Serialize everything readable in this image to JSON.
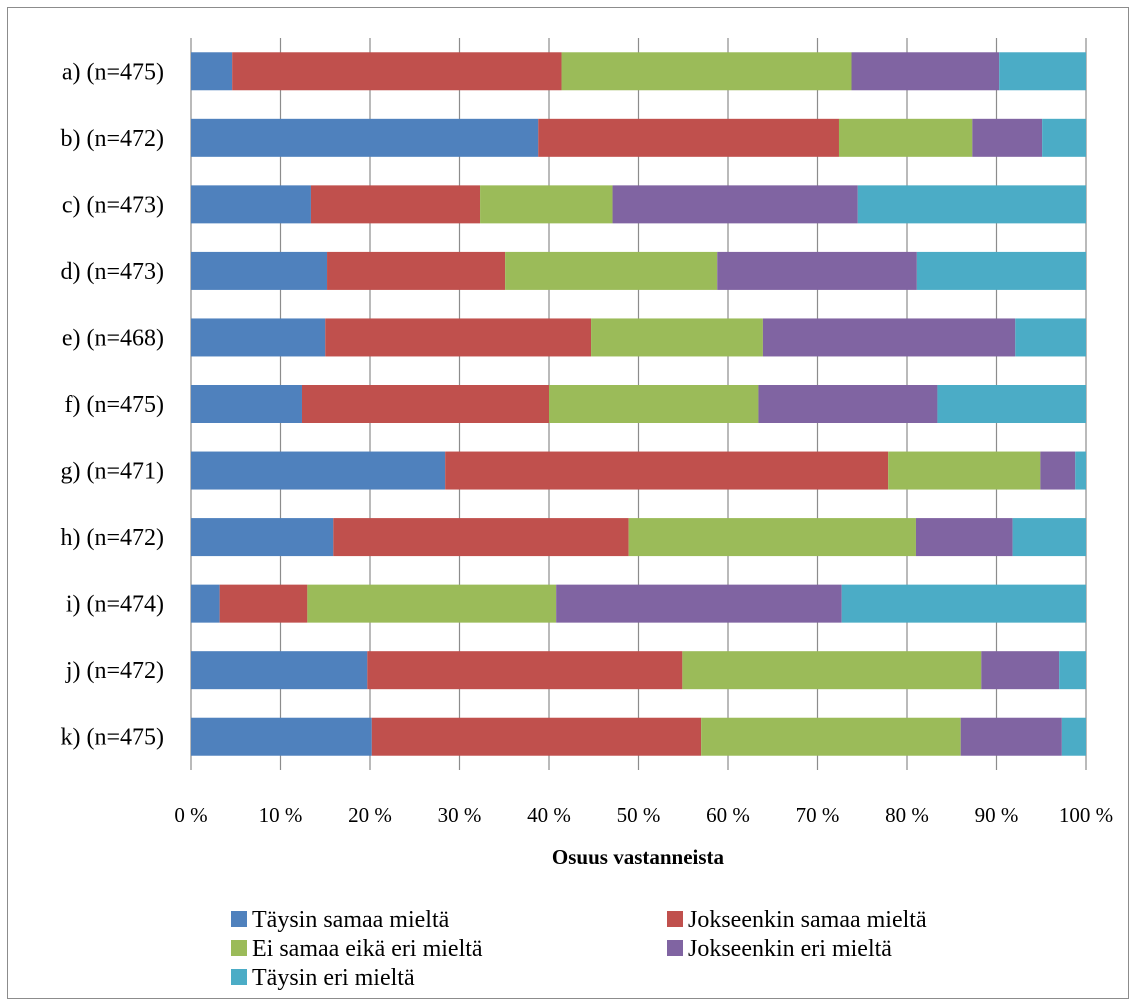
{
  "chart_data": {
    "type": "bar",
    "orientation": "horizontal",
    "stacked": "percent",
    "title": "",
    "xlabel": "Osuus  vastanneista",
    "ylabel": "",
    "xlim": [
      0,
      100
    ],
    "x_ticks": [
      "0 %",
      "10 %",
      "20 %",
      "30 %",
      "40 %",
      "50 %",
      "60 %",
      "70 %",
      "80 %",
      "90 %",
      "100 %"
    ],
    "grid": "vertical",
    "legend_position": "bottom",
    "categories": [
      "a) (n=475)",
      "b) (n=472)",
      "c) (n=473)",
      "d) (n=473)",
      "e) (n=468)",
      "f) (n=475)",
      "g) (n=471)",
      "h) (n=472)",
      "i) (n=474)",
      "j) (n=472)",
      "k) (n=475)"
    ],
    "series": [
      {
        "name": "Täysin samaa mieltä",
        "color": "#4F81BD",
        "values": [
          4.6,
          38.8,
          13.4,
          15.2,
          15.0,
          12.4,
          28.4,
          15.9,
          3.2,
          19.7,
          20.2
        ]
      },
      {
        "name": "Jokseenkin samaa mieltä",
        "color": "#C0504D",
        "values": [
          36.8,
          33.6,
          18.9,
          19.9,
          29.7,
          27.6,
          49.5,
          33.0,
          9.8,
          35.2,
          36.8
        ]
      },
      {
        "name": "Ei samaa eikä eri mieltä",
        "color": "#9BBB59",
        "values": [
          32.4,
          14.9,
          14.8,
          23.7,
          19.2,
          23.4,
          17.0,
          32.1,
          27.8,
          33.4,
          29.0
        ]
      },
      {
        "name": "Jokseenkin eri mieltä",
        "color": "#8064A2",
        "values": [
          16.5,
          7.8,
          27.4,
          22.3,
          28.2,
          20.0,
          3.9,
          10.8,
          31.9,
          8.7,
          11.3
        ]
      },
      {
        "name": "Täysin eri mieltä",
        "color": "#4BACC6",
        "values": [
          9.7,
          4.9,
          25.5,
          18.9,
          7.9,
          16.6,
          1.2,
          8.2,
          27.3,
          3.0,
          2.7
        ]
      }
    ]
  }
}
